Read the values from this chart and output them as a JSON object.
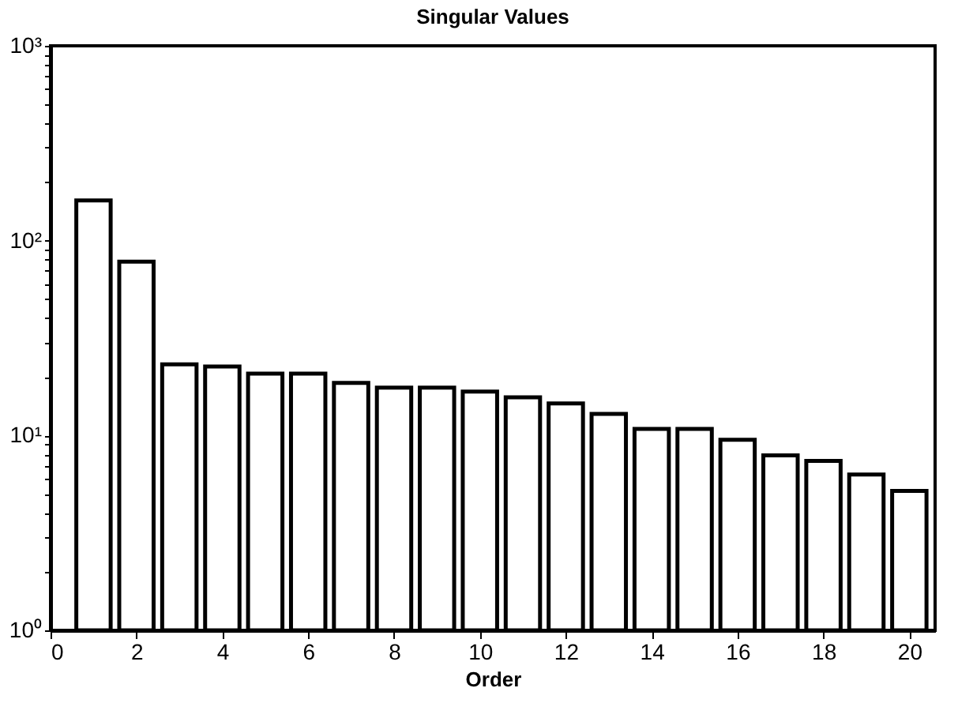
{
  "chart_data": {
    "type": "bar",
    "title": "Singular Values",
    "xlabel": "Order",
    "x": [
      1,
      2,
      3,
      4,
      5,
      6,
      7,
      8,
      9,
      10,
      11,
      12,
      13,
      14,
      15,
      16,
      17,
      18,
      19,
      20
    ],
    "values": [
      161,
      78,
      23.2,
      22.6,
      20.8,
      20.8,
      18.6,
      17.6,
      17.6,
      16.8,
      15.7,
      14.6,
      12.9,
      10.8,
      10.8,
      9.5,
      7.9,
      7.4,
      6.3,
      5.2
    ],
    "color": "#ffffff",
    "log": "y",
    "grid": false,
    "xlim": [
      0,
      20.6
    ],
    "xticks": [
      0,
      2,
      4,
      6,
      8,
      10,
      12,
      14,
      16,
      18,
      20
    ],
    "ylim": [
      1,
      1000
    ],
    "yticks": [
      {
        "value": 1,
        "label": "10⁰"
      },
      {
        "value": 2,
        "label": null
      },
      {
        "value": 3,
        "label": null
      },
      {
        "value": 4,
        "label": null
      },
      {
        "value": 5,
        "label": null
      },
      {
        "value": 6,
        "label": null
      },
      {
        "value": 7,
        "label": null
      },
      {
        "value": 8,
        "label": null
      },
      {
        "value": 9,
        "label": null
      },
      {
        "value": 10,
        "label": "10¹"
      },
      {
        "value": 20,
        "label": null
      },
      {
        "value": 30,
        "label": null
      },
      {
        "value": 40,
        "label": null
      },
      {
        "value": 50,
        "label": null
      },
      {
        "value": 60,
        "label": null
      },
      {
        "value": 70,
        "label": null
      },
      {
        "value": 80,
        "label": null
      },
      {
        "value": 90,
        "label": null
      },
      {
        "value": 100,
        "label": "10²"
      },
      {
        "value": 200,
        "label": null
      },
      {
        "value": 300,
        "label": null
      },
      {
        "value": 400,
        "label": null
      },
      {
        "value": 500,
        "label": null
      },
      {
        "value": 600,
        "label": null
      },
      {
        "value": 700,
        "label": null
      },
      {
        "value": 800,
        "label": null
      },
      {
        "value": 900,
        "label": null
      },
      {
        "value": 1000,
        "label": "10³"
      }
    ]
  }
}
